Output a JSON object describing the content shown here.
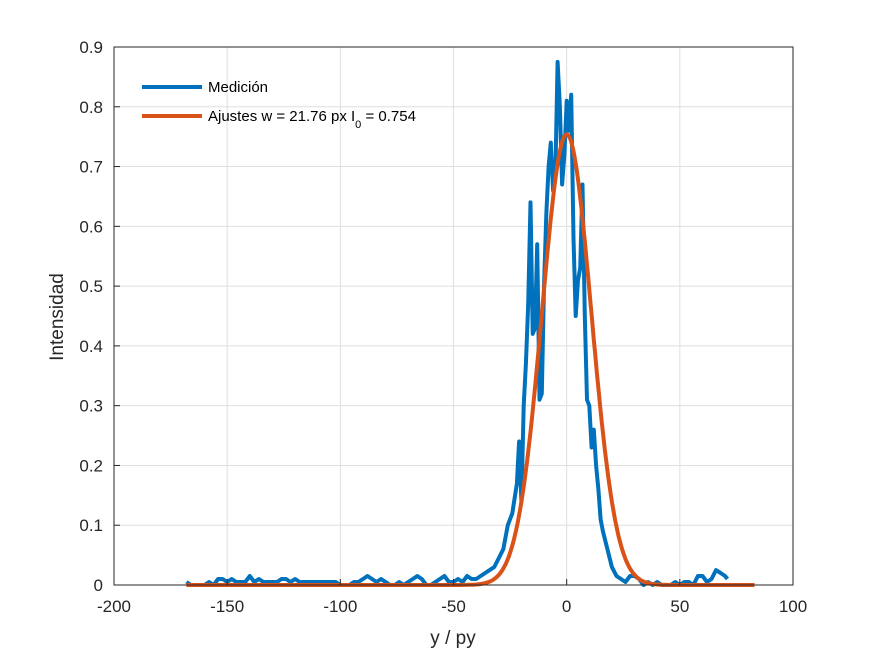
{
  "chart_data": {
    "type": "line",
    "title": "",
    "xlabel": "y / py",
    "ylabel": "Intensidad",
    "xlim": [
      -200,
      100
    ],
    "ylim": [
      0,
      0.9
    ],
    "xticks": [
      -200,
      -150,
      -100,
      -50,
      0,
      50,
      100
    ],
    "yticks": [
      0,
      0.1,
      0.2,
      0.3,
      0.4,
      0.5,
      0.6,
      0.7,
      0.8,
      0.9
    ],
    "grid": true,
    "legend_position": "top-left",
    "series": [
      {
        "name": "Medición",
        "color": "#0072BD",
        "x": [
          -168,
          -166,
          -164,
          -162,
          -160,
          -158,
          -156,
          -154,
          -152,
          -150,
          -148,
          -146,
          -144,
          -142,
          -140,
          -138,
          -136,
          -134,
          -132,
          -130,
          -128,
          -126,
          -124,
          -122,
          -120,
          -118,
          -116,
          -114,
          -112,
          -110,
          -108,
          -106,
          -104,
          -102,
          -100,
          -98,
          -96,
          -94,
          -92,
          -90,
          -88,
          -86,
          -84,
          -82,
          -80,
          -78,
          -76,
          -74,
          -72,
          -70,
          -68,
          -66,
          -64,
          -62,
          -60,
          -58,
          -56,
          -54,
          -52,
          -50,
          -48,
          -46,
          -44,
          -42,
          -40,
          -38,
          -36,
          -34,
          -32,
          -30,
          -28,
          -26,
          -24,
          -22,
          -21,
          -20,
          -19,
          -18,
          -17,
          -16,
          -15,
          -14,
          -13,
          -12,
          -11,
          -10,
          -9,
          -8,
          -7,
          -6,
          -5,
          -4,
          -3,
          -2,
          -1,
          0,
          1,
          2,
          3,
          4,
          5,
          6,
          7,
          8,
          9,
          10,
          11,
          12,
          13,
          14,
          15,
          16,
          18,
          20,
          22,
          24,
          26,
          28,
          30,
          32,
          34,
          36,
          38,
          40,
          42,
          44,
          46,
          48,
          50,
          52,
          54,
          56,
          58,
          60,
          62,
          64,
          66,
          68,
          70,
          71
        ],
        "y": [
          0.005,
          0.0,
          0.0,
          0.0,
          0.0,
          0.005,
          0.0,
          0.01,
          0.01,
          0.005,
          0.01,
          0.005,
          0.005,
          0.005,
          0.015,
          0.005,
          0.01,
          0.005,
          0.005,
          0.005,
          0.005,
          0.01,
          0.01,
          0.005,
          0.01,
          0.005,
          0.005,
          0.005,
          0.005,
          0.005,
          0.005,
          0.005,
          0.005,
          0.005,
          0.0,
          0.0,
          0.0,
          0.005,
          0.005,
          0.01,
          0.015,
          0.01,
          0.005,
          0.01,
          0.005,
          0.0,
          0.0,
          0.005,
          0.0,
          0.005,
          0.01,
          0.015,
          0.01,
          0.0,
          0.0,
          0.005,
          0.01,
          0.015,
          0.005,
          0.005,
          0.01,
          0.005,
          0.015,
          0.01,
          0.01,
          0.015,
          0.02,
          0.025,
          0.03,
          0.045,
          0.06,
          0.1,
          0.12,
          0.17,
          0.24,
          0.14,
          0.3,
          0.37,
          0.47,
          0.64,
          0.42,
          0.43,
          0.57,
          0.31,
          0.32,
          0.5,
          0.62,
          0.7,
          0.74,
          0.66,
          0.69,
          0.875,
          0.8,
          0.67,
          0.72,
          0.81,
          0.76,
          0.82,
          0.58,
          0.45,
          0.51,
          0.53,
          0.67,
          0.45,
          0.31,
          0.3,
          0.23,
          0.26,
          0.2,
          0.16,
          0.11,
          0.09,
          0.06,
          0.03,
          0.015,
          0.01,
          0.005,
          0.015,
          0.015,
          0.01,
          0.0,
          0.005,
          0.0,
          0.005,
          0.0,
          0.0,
          0.0,
          0.005,
          0.0,
          0.005,
          0.005,
          0.0,
          0.015,
          0.015,
          0.005,
          0.01,
          0.025,
          0.02,
          0.015,
          0.01
        ]
      },
      {
        "name": "Ajustes w = 21.76 px I_0 = 0.754",
        "color": "#D95319",
        "type": "gaussian-fit",
        "amplitude": 0.754,
        "width": 21.76,
        "center": 0,
        "x_range": [
          -168,
          83
        ]
      }
    ]
  },
  "legend": {
    "entries": [
      {
        "label": "Medición"
      },
      {
        "label_main": "Ajustes w = 21.76 px I",
        "label_sub": "0",
        "label_tail": " = 0.754"
      }
    ]
  }
}
